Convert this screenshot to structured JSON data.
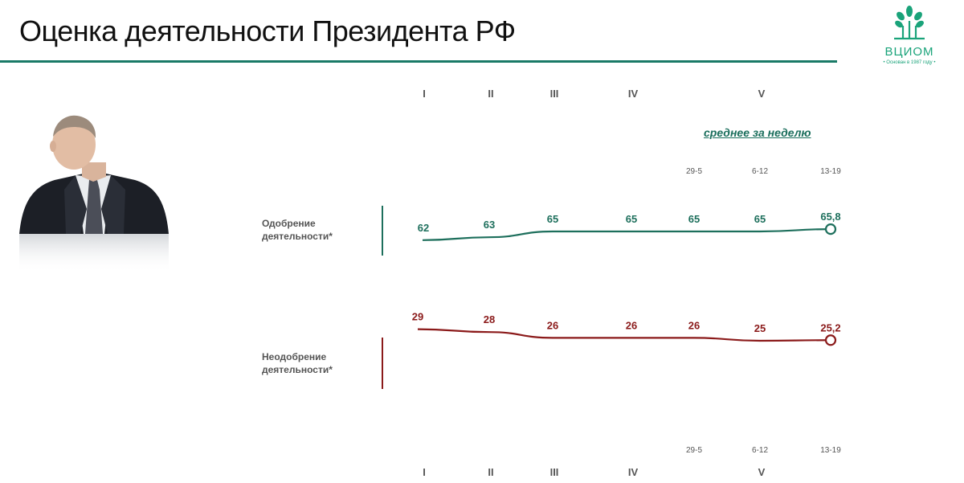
{
  "header": {
    "title": "Оценка деятельности Президента РФ"
  },
  "logo": {
    "name": "ВЦИОМ",
    "tagline": "• Основан в 1987 году •",
    "icon": "tree-logo-icon"
  },
  "photo": {
    "icon": "portrait-photo"
  },
  "chart_data": {
    "type": "line",
    "week_caption": "среднее за неделю",
    "categories_top": [
      "I",
      "II",
      "III",
      "IV",
      "",
      "V",
      ""
    ],
    "categories_bottom": [
      "I",
      "II",
      "III",
      "IV",
      "",
      "V",
      ""
    ],
    "week_labels": [
      "",
      "",
      "",
      "",
      "29-5",
      "6-12",
      "13-19"
    ],
    "series": [
      {
        "name": "Одобрение деятельности*",
        "label_lines": [
          "Одобрение",
          "деятельности*"
        ],
        "values": [
          62,
          63,
          65,
          65,
          65,
          65,
          65.8
        ],
        "labels": [
          "62",
          "63",
          "65",
          "65",
          "65",
          "65",
          "65,8"
        ],
        "color": "#1d6f5c"
      },
      {
        "name": "Неодобрение деятельности*",
        "label_lines": [
          "Неодобрение",
          "деятельности*"
        ],
        "values": [
          29,
          28,
          26,
          26,
          26,
          25,
          25.2
        ],
        "labels": [
          "29",
          "28",
          "26",
          "26",
          "26",
          "25",
          "25,2"
        ],
        "color": "#8b1a1a"
      }
    ]
  }
}
